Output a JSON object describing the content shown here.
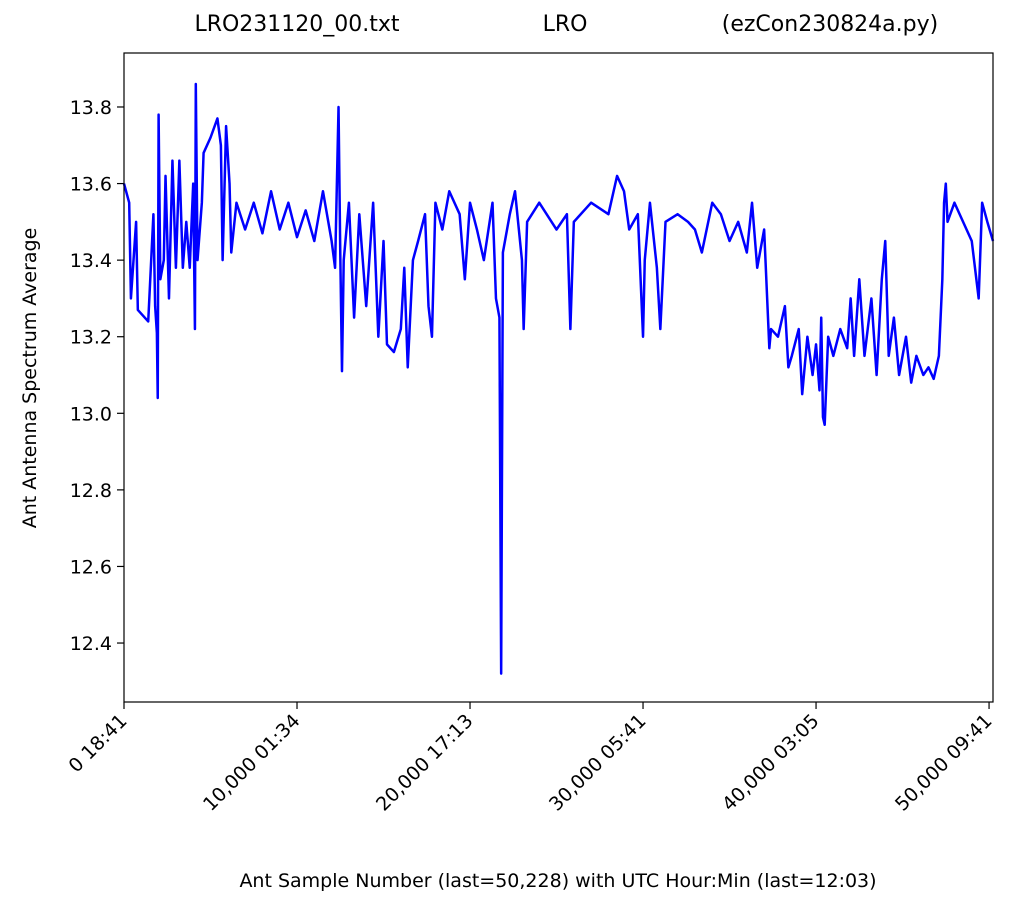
{
  "chart_data": {
    "type": "line",
    "title_parts": [
      "LRO231120_00.txt",
      "LRO",
      "(ezCon230824a.py)"
    ],
    "xlabel": "Ant Sample Number (last=50,228) with UTC Hour:Min (last=12:03)",
    "ylabel": "Ant Antenna Spectrum Average",
    "xlim": [
      0,
      50228
    ],
    "ylim": [
      12.246,
      13.941
    ],
    "xticks": [
      {
        "value": 0,
        "label": "0  18:41"
      },
      {
        "value": 10000,
        "label": "10,000  01:34"
      },
      {
        "value": 20000,
        "label": "20,000  17:13"
      },
      {
        "value": 30000,
        "label": "30,000  05:41"
      },
      {
        "value": 40000,
        "label": "40,000  03:05"
      },
      {
        "value": 50000,
        "label": "50,000  09:41"
      }
    ],
    "yticks": [
      12.4,
      12.6,
      12.8,
      {
        "value": 13,
        "label": "13.0"
      },
      13.2,
      13.4,
      13.6,
      13.8
    ],
    "grid": false,
    "series": [
      {
        "color": "#0000ff",
        "x": [
          0,
          300,
          400,
          700,
          800,
          1400,
          1700,
          1800,
          1900,
          1950,
          2000,
          2100,
          2300,
          2400,
          2600,
          2800,
          3000,
          3200,
          3400,
          3600,
          3800,
          4000,
          4100,
          4150,
          4250,
          4500,
          4600,
          5000,
          5400,
          5600,
          5700,
          5900,
          6100,
          6200,
          6500,
          7000,
          7500,
          8000,
          8500,
          9000,
          9500,
          10000,
          10500,
          11000,
          11500,
          12000,
          12200,
          12400,
          12500,
          12600,
          12700,
          13000,
          13300,
          13600,
          14000,
          14400,
          14700,
          15000,
          15200,
          15600,
          16000,
          16200,
          16400,
          16700,
          17000,
          17400,
          17600,
          17800,
          18000,
          18400,
          18800,
          19400,
          19700,
          20000,
          20400,
          20800,
          21300,
          21500,
          21700,
          21800,
          21900,
          22300,
          22600,
          23000,
          23100,
          23300,
          24000,
          25000,
          25600,
          25800,
          26000,
          27000,
          28000,
          28500,
          28900,
          29200,
          29700,
          30000,
          30100,
          30400,
          30800,
          31000,
          31300,
          32000,
          32600,
          33000,
          33400,
          34000,
          34500,
          35000,
          35500,
          36000,
          36300,
          36600,
          37000,
          37300,
          37400,
          37800,
          38200,
          38400,
          38600,
          39000,
          39200,
          39500,
          39800,
          40000,
          40200,
          40300,
          40400,
          40500,
          40700,
          41000,
          41400,
          41800,
          42000,
          42200,
          42500,
          42800,
          43200,
          43500,
          43800,
          44000,
          44200,
          44500,
          44800,
          45200,
          45500,
          45800,
          46200,
          46500,
          46800,
          47100,
          47300,
          47400,
          47500,
          47600,
          48000,
          48500,
          49000,
          49400,
          49600,
          49900,
          50228
        ],
        "values": [
          13.6,
          13.55,
          13.3,
          13.5,
          13.27,
          13.24,
          13.52,
          13.28,
          13.21,
          13.04,
          13.78,
          13.35,
          13.4,
          13.62,
          13.3,
          13.66,
          13.38,
          13.66,
          13.38,
          13.5,
          13.38,
          13.6,
          13.22,
          13.86,
          13.4,
          13.55,
          13.68,
          13.72,
          13.77,
          13.7,
          13.4,
          13.75,
          13.6,
          13.42,
          13.55,
          13.48,
          13.55,
          13.47,
          13.58,
          13.48,
          13.55,
          13.46,
          13.53,
          13.45,
          13.58,
          13.45,
          13.38,
          13.8,
          13.42,
          13.11,
          13.4,
          13.55,
          13.25,
          13.52,
          13.28,
          13.55,
          13.2,
          13.45,
          13.18,
          13.16,
          13.22,
          13.38,
          13.12,
          13.4,
          13.45,
          13.52,
          13.28,
          13.2,
          13.55,
          13.48,
          13.58,
          13.52,
          13.35,
          13.55,
          13.48,
          13.4,
          13.55,
          13.3,
          13.25,
          12.32,
          13.42,
          13.52,
          13.58,
          13.4,
          13.22,
          13.5,
          13.55,
          13.48,
          13.52,
          13.22,
          13.5,
          13.55,
          13.52,
          13.62,
          13.58,
          13.48,
          13.52,
          13.2,
          13.4,
          13.55,
          13.38,
          13.22,
          13.5,
          13.52,
          13.5,
          13.48,
          13.42,
          13.55,
          13.52,
          13.45,
          13.5,
          13.42,
          13.55,
          13.38,
          13.48,
          13.17,
          13.22,
          13.2,
          13.28,
          13.12,
          13.15,
          13.22,
          13.05,
          13.2,
          13.1,
          13.18,
          13.06,
          13.25,
          12.99,
          12.97,
          13.2,
          13.15,
          13.22,
          13.17,
          13.3,
          13.15,
          13.35,
          13.15,
          13.3,
          13.1,
          13.35,
          13.45,
          13.15,
          13.25,
          13.1,
          13.2,
          13.08,
          13.15,
          13.1,
          13.12,
          13.09,
          13.15,
          13.35,
          13.55,
          13.6,
          13.5,
          13.55,
          13.5,
          13.45,
          13.3,
          13.55,
          13.5,
          13.45
        ]
      }
    ]
  }
}
